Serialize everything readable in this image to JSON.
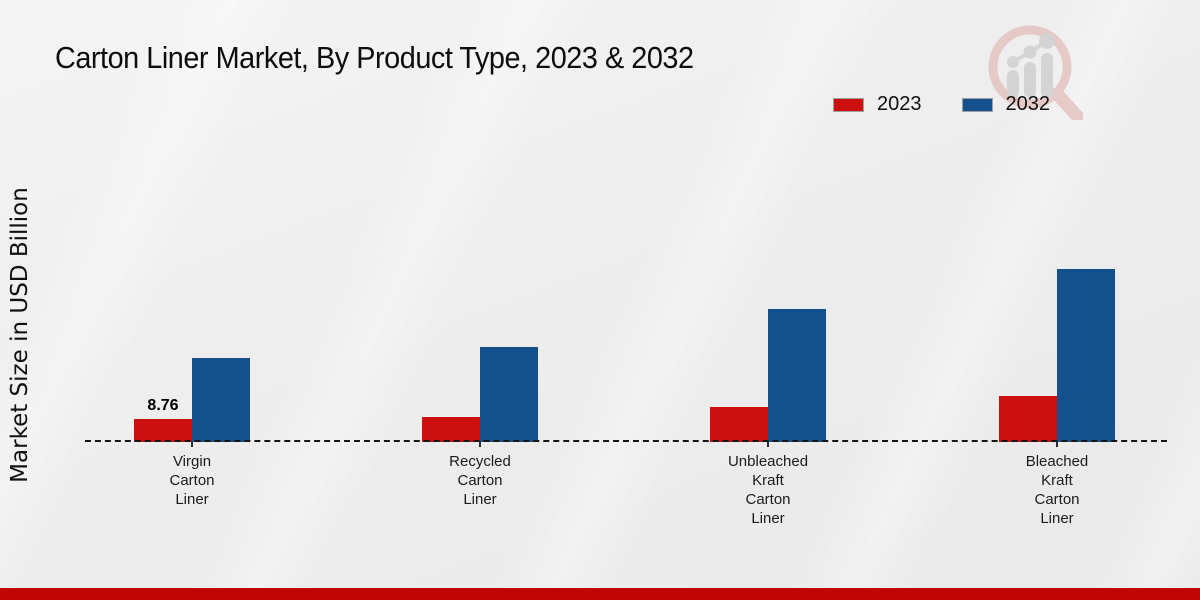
{
  "title": "Carton Liner Market, By Product Type, 2023 & 2032",
  "ylabel": "Market Size in USD Billion",
  "legend": {
    "items": [
      {
        "label": "2023",
        "color": "#cc1010"
      },
      {
        "label": "2032",
        "color": "#14518c"
      }
    ]
  },
  "chart_data": {
    "type": "bar",
    "title": "Carton Liner Market, By Product Type, 2023 & 2032",
    "xlabel": "",
    "ylabel": "Market Size in USD Billion",
    "categories": [
      "Virgin Carton Liner",
      "Recycled Carton Liner",
      "Unbleached Kraft Carton Liner",
      "Bleached Kraft Carton Liner"
    ],
    "category_labels_wrapped": [
      "Virgin\nCarton\nLiner",
      "Recycled\nCarton\nLiner",
      "Unbleached\nKraft\nCarton\nLiner",
      "Bleached\nKraft\nCarton\nLiner"
    ],
    "series": [
      {
        "name": "2023",
        "color": "#cc1010",
        "values": [
          8.76,
          9.5,
          13.3,
          17.5
        ]
      },
      {
        "name": "2032",
        "color": "#14518c",
        "values": [
          32.0,
          36.2,
          50.7,
          65.9
        ]
      }
    ],
    "data_labels": {
      "series": "2023",
      "values": [
        "8.76",
        null,
        null,
        null
      ]
    },
    "ylim": [
      0,
      70
    ],
    "grid": false,
    "y_axis_ticks_shown": false,
    "baseline_style": "dashed",
    "legend_position": "top-right"
  },
  "watermark_icon": "magnifier-bar-chart-logo",
  "colors": {
    "bar_2023": "#cc1010",
    "bar_2032": "#14518c",
    "footer_bar": "#bf0505",
    "background": "#ededed",
    "watermark_pink": "#e5c6c3",
    "watermark_gray": "#d2d2d2"
  }
}
